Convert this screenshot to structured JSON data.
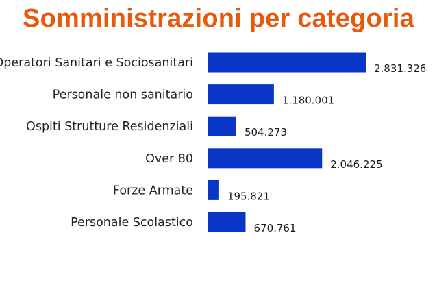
{
  "title": "Somministrazioni per categoria",
  "colors": {
    "title": "#e8590c",
    "bar": "#0a36c8",
    "category_text": "#2a1c25",
    "value_text": "#1a1a1a",
    "background": "#ffffff"
  },
  "chart_data": {
    "type": "bar",
    "orientation": "horizontal",
    "title": "Somministrazioni per categoria",
    "categories": [
      "Operatori Sanitari e Sociosanitari",
      "Personale non sanitario",
      "Ospiti Strutture Residenziali",
      "Over 80",
      "Forze Armate",
      "Personale Scolastico"
    ],
    "values": [
      2831326,
      1180001,
      504273,
      2046225,
      195821,
      670761
    ],
    "value_labels": [
      "2.831.326",
      "1.180.001",
      "504.273",
      "2.046.225",
      "195.821",
      "670.761"
    ],
    "xlabel": "",
    "ylabel": "",
    "grid": false,
    "legend": "none"
  }
}
